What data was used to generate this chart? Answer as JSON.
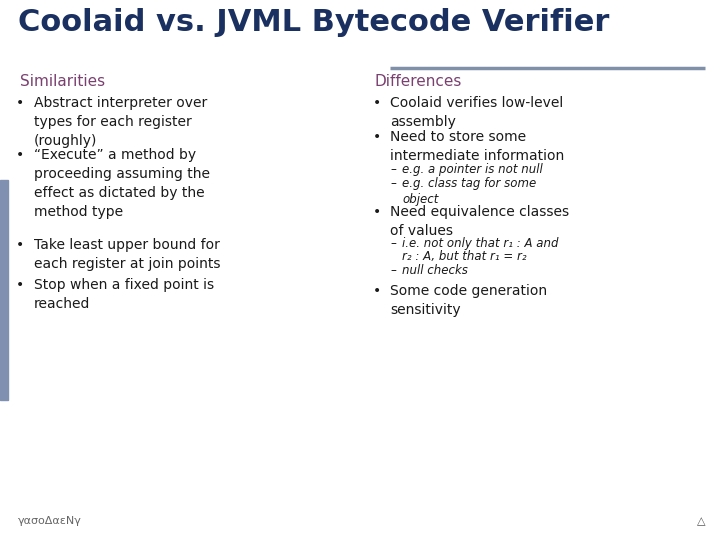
{
  "title": "Coolaid vs. JVML Bytecode Verifier",
  "title_color": "#1a3060",
  "title_fontsize": 22,
  "bg_color": "#ffffff",
  "divider_color": "#8090a8",
  "left_heading": "Similarities",
  "right_heading": "Differences",
  "heading_color": "#7a4070",
  "heading_fontsize": 11,
  "body_fontsize": 10,
  "sub_fontsize": 8.5,
  "left_bullets": [
    "Abstract interpreter over\ntypes for each register\n(roughly)",
    "“Execute” a method by\nproceeding assuming the\neffect as dictated by the\nmethod type",
    "Take least upper bound for\neach register at join points",
    "Stop when a fixed point is\nreached"
  ],
  "right_bullet1": "Coolaid verifies low-level\nassembly",
  "right_bullet2": "Need to store some\nintermediate information",
  "right_sub1": [
    "e.g. a pointer is not null",
    "e.g. class tag for some\nobject"
  ],
  "right_bullet3": "Need equivalence classes\nof values",
  "right_sub2_line1": "i.e. not only that r₁ : A and",
  "right_sub2_line2": "r₂ : A, but that r₁ = r₂",
  "right_sub2_line3": "null checks",
  "right_bullet4": "Some code generation\nsensitivity",
  "footer_left": "γασοΔαεΝγ",
  "footer_right": "△",
  "text_color": "#1a1a1a",
  "accent_color": "#8090b0"
}
